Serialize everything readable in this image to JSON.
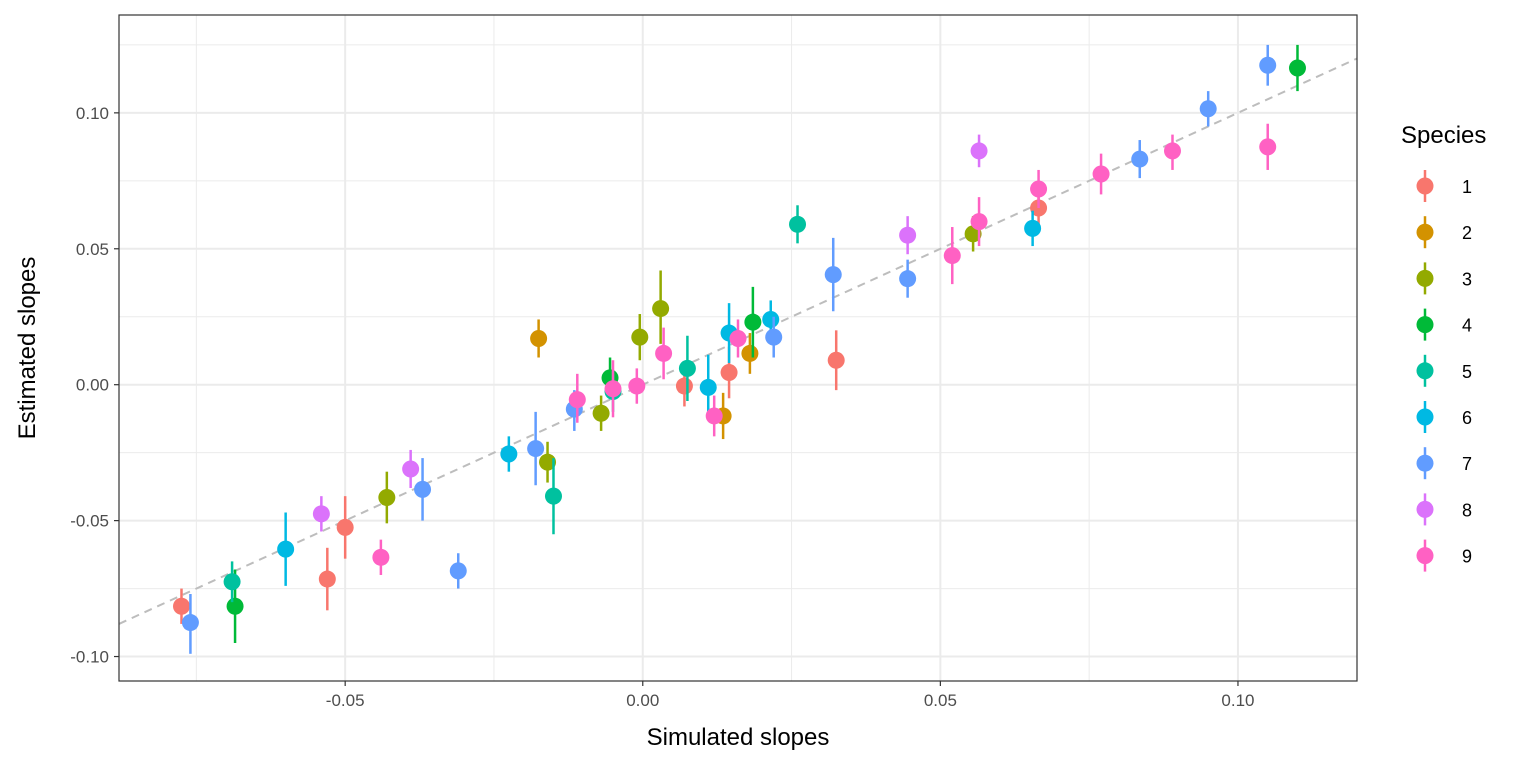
{
  "chart_data": {
    "type": "scatter",
    "title": "",
    "xlabel": "Simulated slopes",
    "ylabel": "Estimated slopes",
    "xlim": [
      -0.088,
      0.12
    ],
    "ylim": [
      -0.109,
      0.136
    ],
    "x_ticks": [
      -0.05,
      0.0,
      0.05,
      0.1
    ],
    "x_tick_labels": [
      "-0.05",
      "0.00",
      "0.05",
      "0.10"
    ],
    "y_ticks": [
      -0.1,
      -0.05,
      0.0,
      0.05,
      0.1
    ],
    "y_tick_labels": [
      "-0.10",
      "-0.05",
      "0.00",
      "0.05",
      "0.10"
    ],
    "grid": true,
    "reference_line": "y = x (dashed)",
    "legend": {
      "title": "Species",
      "position": "right"
    },
    "series": [
      {
        "name": "1",
        "color": "#F8766D",
        "points": [
          {
            "x": -0.0775,
            "y": -0.0815,
            "lo": -0.088,
            "hi": -0.075
          },
          {
            "x": -0.053,
            "y": -0.0715,
            "lo": -0.083,
            "hi": -0.06
          },
          {
            "x": -0.05,
            "y": -0.0525,
            "lo": -0.064,
            "hi": -0.041
          },
          {
            "x": 0.007,
            "y": -0.0005,
            "lo": -0.008,
            "hi": 0.007
          },
          {
            "x": 0.0145,
            "y": 0.0045,
            "lo": -0.005,
            "hi": 0.014
          },
          {
            "x": 0.0325,
            "y": 0.009,
            "lo": -0.002,
            "hi": 0.02
          },
          {
            "x": 0.0665,
            "y": 0.065,
            "lo": 0.058,
            "hi": 0.072
          }
        ]
      },
      {
        "name": "2",
        "color": "#D39200",
        "points": [
          {
            "x": -0.0175,
            "y": 0.017,
            "lo": 0.01,
            "hi": 0.024
          },
          {
            "x": 0.0135,
            "y": -0.0115,
            "lo": -0.02,
            "hi": -0.003
          },
          {
            "x": 0.018,
            "y": 0.0115,
            "lo": 0.004,
            "hi": 0.019
          }
        ]
      },
      {
        "name": "3",
        "color": "#93AA00",
        "points": [
          {
            "x": -0.043,
            "y": -0.0415,
            "lo": -0.051,
            "hi": -0.032
          },
          {
            "x": -0.016,
            "y": -0.0285,
            "lo": -0.036,
            "hi": -0.021
          },
          {
            "x": -0.007,
            "y": -0.0105,
            "lo": -0.017,
            "hi": -0.004
          },
          {
            "x": -0.0005,
            "y": 0.0175,
            "lo": 0.009,
            "hi": 0.026
          },
          {
            "x": 0.003,
            "y": 0.028,
            "lo": 0.015,
            "hi": 0.042
          },
          {
            "x": 0.0555,
            "y": 0.0555,
            "lo": 0.049,
            "hi": 0.062
          }
        ]
      },
      {
        "name": "4",
        "color": "#00BA38",
        "points": [
          {
            "x": -0.0685,
            "y": -0.0815,
            "lo": -0.095,
            "hi": -0.068
          },
          {
            "x": -0.0055,
            "y": 0.0025,
            "lo": -0.005,
            "hi": 0.01
          },
          {
            "x": 0.0185,
            "y": 0.023,
            "lo": 0.01,
            "hi": 0.036
          },
          {
            "x": 0.11,
            "y": 0.1165,
            "lo": 0.108,
            "hi": 0.125
          }
        ]
      },
      {
        "name": "5",
        "color": "#00C19F",
        "points": [
          {
            "x": -0.069,
            "y": -0.0725,
            "lo": -0.08,
            "hi": -0.065
          },
          {
            "x": -0.015,
            "y": -0.041,
            "lo": -0.055,
            "hi": -0.027
          },
          {
            "x": -0.005,
            "y": -0.0025,
            "lo": -0.01,
            "hi": 0.005
          },
          {
            "x": 0.0075,
            "y": 0.006,
            "lo": -0.006,
            "hi": 0.018
          },
          {
            "x": 0.026,
            "y": 0.059,
            "lo": 0.052,
            "hi": 0.066
          }
        ]
      },
      {
        "name": "6",
        "color": "#00B9E3",
        "points": [
          {
            "x": -0.06,
            "y": -0.0605,
            "lo": -0.074,
            "hi": -0.047
          },
          {
            "x": -0.0225,
            "y": -0.0255,
            "lo": -0.032,
            "hi": -0.019
          },
          {
            "x": 0.011,
            "y": -0.001,
            "lo": -0.013,
            "hi": 0.011
          },
          {
            "x": 0.0145,
            "y": 0.019,
            "lo": 0.008,
            "hi": 0.03
          },
          {
            "x": 0.0215,
            "y": 0.024,
            "lo": 0.017,
            "hi": 0.031
          },
          {
            "x": 0.0655,
            "y": 0.0575,
            "lo": 0.051,
            "hi": 0.064
          }
        ]
      },
      {
        "name": "7",
        "color": "#619CFF",
        "points": [
          {
            "x": -0.076,
            "y": -0.0875,
            "lo": -0.099,
            "hi": -0.077
          },
          {
            "x": -0.037,
            "y": -0.0385,
            "lo": -0.05,
            "hi": -0.027
          },
          {
            "x": -0.031,
            "y": -0.0685,
            "lo": -0.075,
            "hi": -0.062
          },
          {
            "x": -0.018,
            "y": -0.0235,
            "lo": -0.037,
            "hi": -0.01
          },
          {
            "x": -0.0115,
            "y": -0.009,
            "lo": -0.017,
            "hi": -0.002
          },
          {
            "x": 0.022,
            "y": 0.0175,
            "lo": 0.01,
            "hi": 0.025
          },
          {
            "x": 0.032,
            "y": 0.0405,
            "lo": 0.027,
            "hi": 0.054
          },
          {
            "x": 0.0445,
            "y": 0.039,
            "lo": 0.032,
            "hi": 0.046
          },
          {
            "x": 0.0835,
            "y": 0.083,
            "lo": 0.076,
            "hi": 0.09
          },
          {
            "x": 0.095,
            "y": 0.1015,
            "lo": 0.095,
            "hi": 0.108
          },
          {
            "x": 0.105,
            "y": 0.1175,
            "lo": 0.11,
            "hi": 0.125
          }
        ]
      },
      {
        "name": "8",
        "color": "#DB72FB",
        "points": [
          {
            "x": -0.054,
            "y": -0.0475,
            "lo": -0.054,
            "hi": -0.041
          },
          {
            "x": -0.039,
            "y": -0.031,
            "lo": -0.038,
            "hi": -0.024
          },
          {
            "x": 0.0445,
            "y": 0.055,
            "lo": 0.048,
            "hi": 0.062
          },
          {
            "x": 0.0565,
            "y": 0.086,
            "lo": 0.08,
            "hi": 0.092
          }
        ]
      },
      {
        "name": "9",
        "color": "#FF61C3",
        "points": [
          {
            "x": -0.044,
            "y": -0.0635,
            "lo": -0.07,
            "hi": -0.057
          },
          {
            "x": -0.011,
            "y": -0.0055,
            "lo": -0.014,
            "hi": 0.004
          },
          {
            "x": -0.005,
            "y": -0.0015,
            "lo": -0.012,
            "hi": 0.009
          },
          {
            "x": -0.001,
            "y": -0.0005,
            "lo": -0.007,
            "hi": 0.006
          },
          {
            "x": 0.0035,
            "y": 0.0115,
            "lo": 0.002,
            "hi": 0.021
          },
          {
            "x": 0.012,
            "y": -0.0115,
            "lo": -0.019,
            "hi": -0.004
          },
          {
            "x": 0.016,
            "y": 0.017,
            "lo": 0.01,
            "hi": 0.024
          },
          {
            "x": 0.052,
            "y": 0.0475,
            "lo": 0.037,
            "hi": 0.058
          },
          {
            "x": 0.0565,
            "y": 0.06,
            "lo": 0.051,
            "hi": 0.069
          },
          {
            "x": 0.0665,
            "y": 0.072,
            "lo": 0.065,
            "hi": 0.079
          },
          {
            "x": 0.077,
            "y": 0.0775,
            "lo": 0.07,
            "hi": 0.085
          },
          {
            "x": 0.089,
            "y": 0.086,
            "lo": 0.079,
            "hi": 0.092
          },
          {
            "x": 0.105,
            "y": 0.0875,
            "lo": 0.079,
            "hi": 0.096
          }
        ]
      }
    ]
  }
}
